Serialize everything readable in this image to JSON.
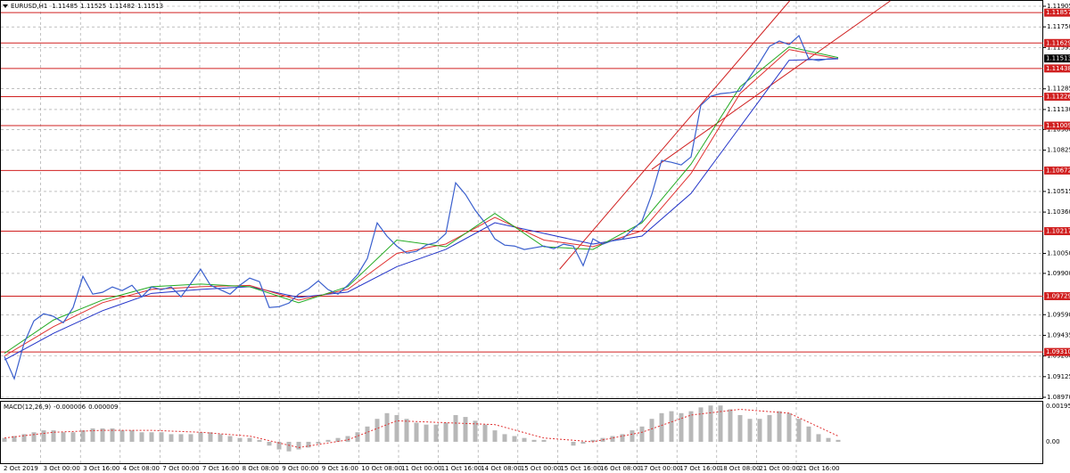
{
  "chart_data": [
    {
      "type": "line",
      "symbol": "EURUSD,H1",
      "header_values": [
        1.11485,
        1.11525,
        1.11482,
        1.11513
      ],
      "color": "#3a5fcd",
      "values": [
        1.09276,
        1.09109,
        1.09376,
        1.09543,
        1.09597,
        1.09577,
        1.0953,
        1.09644,
        1.09878,
        1.09744,
        1.09758,
        1.09798,
        1.09771,
        1.09811,
        1.09724,
        1.09798,
        1.09778,
        1.09798,
        1.09724,
        1.09824,
        1.09931,
        1.09811,
        1.09778,
        1.09744,
        1.09811,
        1.09865,
        1.09838,
        1.09644,
        1.0965,
        1.09677,
        1.09744,
        1.09784,
        1.09844,
        1.09778,
        1.09744,
        1.09811,
        1.09891,
        1.10012,
        1.10279,
        1.10179,
        1.10105,
        1.10052,
        1.10065,
        1.10112,
        1.10132,
        1.10199,
        1.1058,
        1.10493,
        1.10373,
        1.10279,
        1.10159,
        1.10112,
        1.10105,
        1.10079,
        1.10092,
        1.10105,
        1.10085,
        1.10119,
        1.10105,
        1.09958,
        1.10159,
        1.10119,
        1.10146,
        1.10159,
        1.10226,
        1.10293,
        1.10493,
        1.10748,
        1.10734,
        1.10714,
        1.10774,
        1.11162,
        1.11229,
        1.11249,
        1.11256,
        1.11269,
        1.11376,
        1.11484,
        1.11604,
        1.11644,
        1.11617,
        1.11684,
        1.1151,
        1.11497,
        1.1151,
        1.11513
      ],
      "moving_averages": [
        {
          "color": "#2233c8",
          "values": [
            1.0925,
            1.0945,
            1.0962,
            1.0975,
            1.0978,
            1.098,
            1.0972,
            1.0976,
            1.0995,
            1.1008,
            1.1028,
            1.102,
            1.1012,
            1.1018,
            1.105,
            1.11,
            1.115,
            1.1151
          ]
        },
        {
          "color": "#e03030",
          "values": [
            1.0928,
            1.095,
            1.0968,
            1.0978,
            1.098,
            1.0981,
            1.097,
            1.0978,
            1.1005,
            1.1012,
            1.1032,
            1.1015,
            1.101,
            1.1022,
            1.1065,
            1.1125,
            1.1158,
            1.1151
          ]
        },
        {
          "color": "#22aa22",
          "values": [
            1.093,
            1.0955,
            1.097,
            1.098,
            1.0982,
            1.098,
            1.0968,
            1.098,
            1.1015,
            1.101,
            1.1035,
            1.101,
            1.1008,
            1.1028,
            1.1072,
            1.113,
            1.116,
            1.1152
          ]
        }
      ],
      "trendlines": [
        {
          "color": "#d02020",
          "values": [
            1.09931,
            1.11082
          ]
        },
        {
          "color": "#d02020",
          "values": [
            1.10681,
            1.11617
          ]
        }
      ],
      "levels": [
        1.11857,
        1.11629,
        1.11438,
        1.11226,
        1.11009,
        1.10672,
        1.10217,
        1.09729,
        {
          "value": 1.0931,
          "label": "1.09310"
        }
      ],
      "level_color": "#d02020",
      "last_price": 1.11513,
      "ylim": [
        1.0897,
        1.11905
      ],
      "yticks": [
        1.11905,
        {
          "value": 1.1175,
          "label": "1.11750"
        },
        1.11595,
        1.11285,
        {
          "value": 1.1113,
          "label": "1.11130"
        },
        {
          "value": 1.1098,
          "label": "1.10980"
        },
        1.10825,
        1.10515,
        {
          "value": 1.1036,
          "label": "1.10360"
        },
        {
          "value": 1.1005,
          "label": "1.10050"
        },
        {
          "value": 1.099,
          "label": "1.09900"
        },
        {
          "value": 1.0959,
          "label": "1.09590"
        },
        1.09435,
        {
          "value": 1.0928,
          "label": "1.09280"
        },
        1.09125,
        {
          "value": 1.0897,
          "label": "1.08970"
        }
      ],
      "grid": true,
      "time_labels": [
        "2 Oct 2019",
        "3 Oct 00:00",
        "3 Oct 16:00",
        "4 Oct 08:00",
        "7 Oct 00:00",
        "7 Oct 16:00",
        "8 Oct 08:00",
        "9 Oct 00:00",
        "9 Oct 16:00",
        "10 Oct 08:00",
        "11 Oct 00:00",
        "11 Oct 16:00",
        "14 Oct 08:00",
        "15 Oct 00:00",
        "15 Oct 16:00",
        "16 Oct 08:00",
        "17 Oct 00:00",
        "17 Oct 16:00",
        "18 Oct 08:00",
        "21 Oct 00:00",
        "21 Oct 16:00"
      ]
    },
    {
      "type": "bar",
      "label": "MACD(12,26,9)",
      "header_values": [
        -6e-06,
        9e-06
      ],
      "color": "#b8b8b8",
      "signal_color": "#e03030",
      "values": [
        0.0002,
        0.0003,
        0.0004,
        0.0005,
        0.0006,
        0.0006,
        0.0005,
        0.0005,
        0.0006,
        0.0007,
        0.0007,
        0.0007,
        0.0006,
        0.0006,
        0.0005,
        0.0005,
        0.0005,
        0.0004,
        0.0004,
        0.0004,
        0.0005,
        0.0005,
        0.0004,
        0.0003,
        0.0002,
        0.0002,
        0.0001,
        -0.0002,
        -0.0004,
        -0.0005,
        -0.0004,
        -0.0003,
        -0.0001,
        0.0001,
        0.0002,
        0.0003,
        0.0005,
        0.0008,
        0.0012,
        0.0015,
        0.0014,
        0.0012,
        0.001,
        0.0009,
        0.0009,
        0.001,
        0.0014,
        0.0013,
        0.0011,
        0.0009,
        0.0006,
        0.0004,
        0.0003,
        0.0002,
        0.0001,
        0.0001,
        0,
        0,
        -0.0002,
        -0.0001,
        0.0001,
        0.0002,
        0.0003,
        0.0004,
        0.0006,
        0.0008,
        0.0012,
        0.0015,
        0.0016,
        0.0015,
        0.0016,
        0.0018,
        0.0019,
        0.0019,
        0.0017,
        0.0014,
        0.0012,
        0.0012,
        0.0014,
        0.0016,
        0.0015,
        0.0012,
        0.0008,
        0.0004,
        0.0002,
        0.0001
      ],
      "signal": [
        0.0002,
        0.0005,
        0.0006,
        0.0006,
        0.0005,
        0.0003,
        -0.0003,
        0.0001,
        0.0011,
        0.001,
        0.0009,
        0.0002,
        0,
        0.0005,
        0.0014,
        0.0017,
        0.0015,
        0.0003
      ],
      "ylim": [
        -0.00112,
        0.001957
      ],
      "yticks": [
        0.001957,
        {
          "value": 0,
          "label": "0.00"
        }
      ]
    }
  ]
}
